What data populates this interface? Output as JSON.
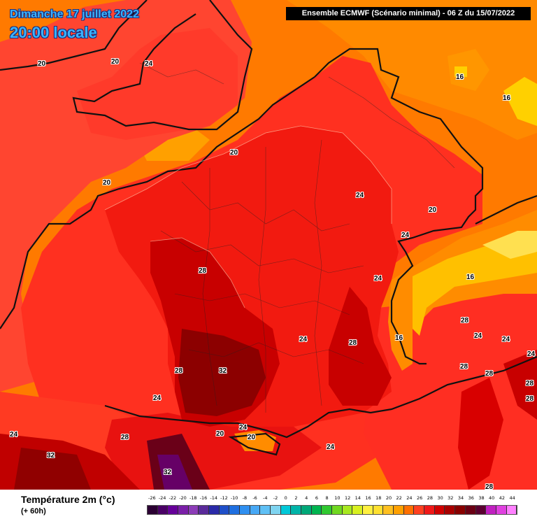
{
  "header": {
    "date": "Dimanche 17 juillet 2022",
    "time": "20:00 locale",
    "model": "Ensemble ECMWF  (Scénario minimal) - 06 Z du 15/07/2022"
  },
  "map_labels": [
    {
      "text": "20"
    },
    {
      "text": "20"
    },
    {
      "text": "24"
    },
    {
      "text": "16"
    },
    {
      "text": "16"
    },
    {
      "text": "20"
    },
    {
      "text": "20"
    },
    {
      "text": "24"
    },
    {
      "text": "20"
    },
    {
      "text": "24"
    },
    {
      "text": "28"
    },
    {
      "text": "24"
    },
    {
      "text": "16"
    },
    {
      "text": "24"
    },
    {
      "text": "28"
    },
    {
      "text": "28"
    },
    {
      "text": "24"
    },
    {
      "text": "24"
    },
    {
      "text": "16"
    },
    {
      "text": "28"
    },
    {
      "text": "32"
    },
    {
      "text": "28"
    },
    {
      "text": "28"
    },
    {
      "text": "24"
    },
    {
      "text": "24"
    },
    {
      "text": "28"
    },
    {
      "text": "28"
    },
    {
      "text": "24"
    },
    {
      "text": "20"
    },
    {
      "text": "20"
    },
    {
      "text": "28"
    },
    {
      "text": "24"
    },
    {
      "text": "32"
    },
    {
      "text": "32"
    },
    {
      "text": "28"
    }
  ],
  "legend": {
    "title": "Température 2m (°c)",
    "subtitle": "(+ 60h)",
    "ticks": [
      "-26",
      "-24",
      "-22",
      "-20",
      "-18",
      "-16",
      "-14",
      "-12",
      "-10",
      "-8",
      "-6",
      "-4",
      "-2",
      "0",
      "2",
      "4",
      "6",
      "8",
      "10",
      "12",
      "14",
      "16",
      "18",
      "20",
      "22",
      "24",
      "26",
      "28",
      "30",
      "32",
      "34",
      "36",
      "38",
      "40",
      "42",
      "44"
    ],
    "colors": [
      "#2b0033",
      "#4a0066",
      "#660099",
      "#7a1fa8",
      "#8c3cb8",
      "#5a2a9a",
      "#2a2aa8",
      "#1f4fc8",
      "#1f6fe0",
      "#2f8ff0",
      "#47a8f5",
      "#5fc0f5",
      "#7fd4f0",
      "#00c8d8",
      "#00b4a8",
      "#00a878",
      "#00b450",
      "#30c830",
      "#70d820",
      "#a8e820",
      "#d8f020",
      "#fff040",
      "#ffe030",
      "#ffc020",
      "#ffa000",
      "#ff7000",
      "#ff4020",
      "#f01818",
      "#d00000",
      "#a80000",
      "#880000",
      "#6a0014",
      "#5a0030",
      "#c020c0",
      "#e040e0",
      "#ff80ff"
    ]
  },
  "colors": {
    "sea_orange": "#ff7700",
    "land_red": "#ff2c1a",
    "hot_red": "#d40000",
    "very_hot": "#8c0000",
    "cool_yellow": "#ffd000",
    "border": "#101010"
  }
}
